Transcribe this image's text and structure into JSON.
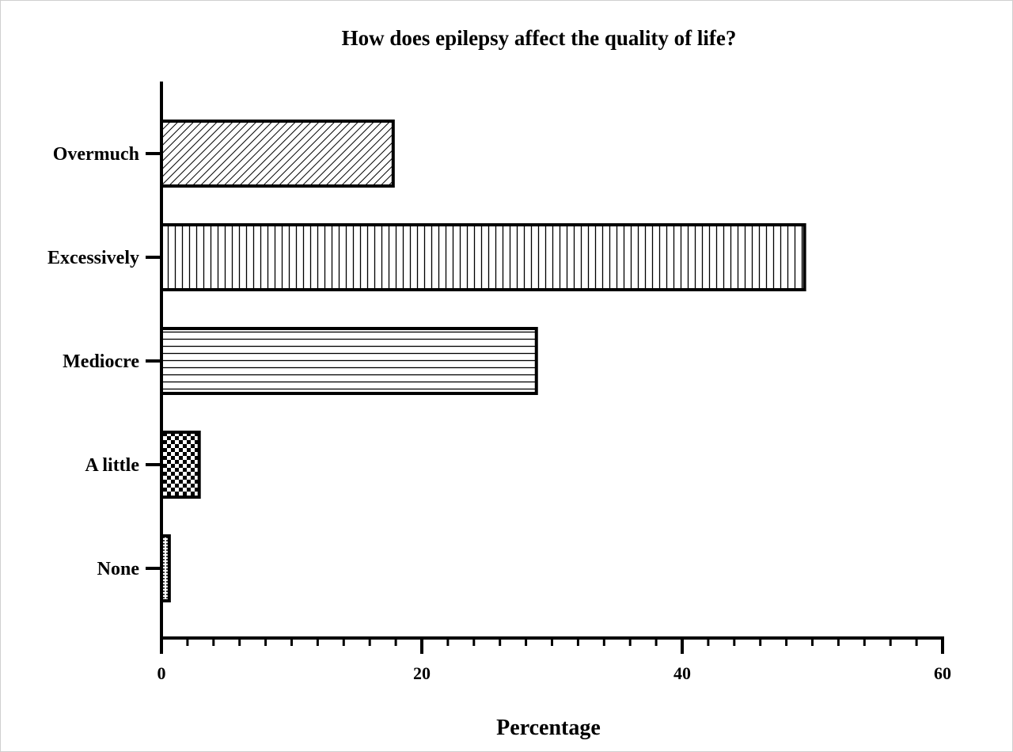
{
  "chart_data": {
    "type": "bar",
    "orientation": "horizontal",
    "title": "How does epilepsy affect the quality of life?",
    "xlabel": "Percentage",
    "ylabel": "",
    "xlim": [
      0,
      60
    ],
    "x_ticks": [
      0,
      20,
      40,
      60
    ],
    "x_tick_labels": [
      "0",
      "20",
      "40",
      "60"
    ],
    "x_minor_tick_step": 2,
    "grid": false,
    "legend": "none",
    "categories": [
      "Overmuch",
      "Excessively",
      "Mediocre",
      "A little",
      "None"
    ],
    "values": [
      17.8,
      49.4,
      28.8,
      2.9,
      0.6
    ],
    "patterns": [
      "diagonal-hatch",
      "vertical-lines",
      "horizontal-lines",
      "checkerboard",
      "dots"
    ],
    "colors": {
      "stroke": "#000000",
      "fill": "#ffffff"
    }
  }
}
